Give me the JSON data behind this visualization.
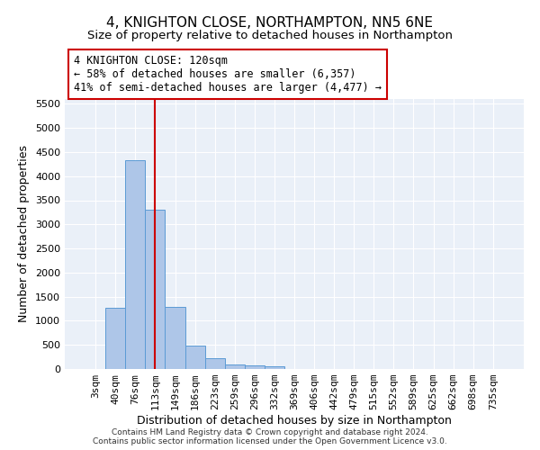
{
  "title": "4, KNIGHTON CLOSE, NORTHAMPTON, NN5 6NE",
  "subtitle": "Size of property relative to detached houses in Northampton",
  "xlabel": "Distribution of detached houses by size in Northampton",
  "ylabel": "Number of detached properties",
  "footer_line1": "Contains HM Land Registry data © Crown copyright and database right 2024.",
  "footer_line2": "Contains public sector information licensed under the Open Government Licence v3.0.",
  "categories": [
    "3sqm",
    "40sqm",
    "76sqm",
    "113sqm",
    "149sqm",
    "186sqm",
    "223sqm",
    "259sqm",
    "296sqm",
    "332sqm",
    "369sqm",
    "406sqm",
    "442sqm",
    "479sqm",
    "515sqm",
    "552sqm",
    "589sqm",
    "625sqm",
    "662sqm",
    "698sqm",
    "735sqm"
  ],
  "bar_values": [
    0,
    1270,
    4340,
    3300,
    1280,
    490,
    230,
    90,
    70,
    60,
    0,
    0,
    0,
    0,
    0,
    0,
    0,
    0,
    0,
    0,
    0
  ],
  "bar_color": "#aec6e8",
  "bar_edge_color": "#5b9bd5",
  "bg_color": "#eaf0f8",
  "grid_color": "#ffffff",
  "vline_x": 3.0,
  "vline_color": "#cc0000",
  "annotation_text": "4 KNIGHTON CLOSE: 120sqm\n← 58% of detached houses are smaller (6,357)\n41% of semi-detached houses are larger (4,477) →",
  "ylim": [
    0,
    5600
  ],
  "yticks": [
    0,
    500,
    1000,
    1500,
    2000,
    2500,
    3000,
    3500,
    4000,
    4500,
    5000,
    5500
  ],
  "title_fontsize": 11,
  "subtitle_fontsize": 9.5,
  "axis_label_fontsize": 9,
  "tick_fontsize": 8,
  "footer_fontsize": 6.5
}
